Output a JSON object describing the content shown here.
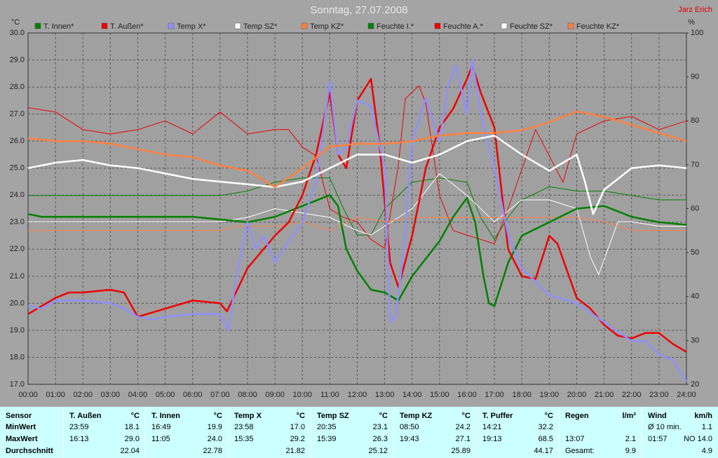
{
  "chart_data": {
    "type": "line",
    "title": "Sonntag, 27.07.2008",
    "annotation": "Jarz Erich",
    "y_label": "°C",
    "y2_label": "%",
    "xlim": [
      0,
      24
    ],
    "xticks": [
      {
        "value": 0,
        "label": "00:00"
      },
      {
        "value": 1,
        "label": "01:00"
      },
      {
        "value": 2,
        "label": "02:00"
      },
      {
        "value": 3,
        "label": "03:00"
      },
      {
        "value": 4,
        "label": "04:00"
      },
      {
        "value": 5,
        "label": "05:00"
      },
      {
        "value": 6,
        "label": "06:00"
      },
      {
        "value": 7,
        "label": "07:00"
      },
      {
        "value": 8,
        "label": "08:00"
      },
      {
        "value": 9,
        "label": "09:00"
      },
      {
        "value": 10,
        "label": "10:00"
      },
      {
        "value": 11,
        "label": "11:00"
      },
      {
        "value": 12,
        "label": "12:00"
      },
      {
        "value": 13,
        "label": "13:00"
      },
      {
        "value": 14,
        "label": "14:00"
      },
      {
        "value": 15,
        "label": "15:00"
      },
      {
        "value": 16,
        "label": "16:00"
      },
      {
        "value": 17,
        "label": "17:00"
      },
      {
        "value": 18,
        "label": "18:00"
      },
      {
        "value": 19,
        "label": "19:00"
      },
      {
        "value": 20,
        "label": "20:00"
      },
      {
        "value": 21,
        "label": "21:00"
      },
      {
        "value": 22,
        "label": "22:00"
      },
      {
        "value": 23,
        "label": "23:00"
      },
      {
        "value": 24,
        "label": "24:00"
      }
    ],
    "ylim": [
      17,
      30
    ],
    "yticks": [
      {
        "value": 17,
        "label": "17.0"
      },
      {
        "value": 18,
        "label": "18.0"
      },
      {
        "value": 19,
        "label": "19.0"
      },
      {
        "value": 20,
        "label": "20.0"
      },
      {
        "value": 21,
        "label": "21.0"
      },
      {
        "value": 22,
        "label": "22.0"
      },
      {
        "value": 23,
        "label": "23.0"
      },
      {
        "value": 24,
        "label": "24.0"
      },
      {
        "value": 25,
        "label": "25.0"
      },
      {
        "value": 26,
        "label": "26.0"
      },
      {
        "value": 27,
        "label": "27.0"
      },
      {
        "value": 28,
        "label": "28.0"
      },
      {
        "value": 29,
        "label": "29.0"
      },
      {
        "value": 30,
        "label": "30.0"
      }
    ],
    "y2lim": [
      20,
      100
    ],
    "y2ticks": [
      20,
      30,
      40,
      50,
      60,
      70,
      80,
      90,
      100
    ],
    "grid": true,
    "series": [
      {
        "name": "T. Innen*",
        "color": "#008000",
        "x": [
          0,
          0.5,
          1,
          2,
          3,
          4,
          5,
          6,
          7,
          8,
          9,
          10,
          10.5,
          11,
          11.3,
          11.6,
          12,
          12.5,
          13,
          13.5,
          14,
          15,
          15.5,
          16,
          16.3,
          16.6,
          16.8,
          17,
          17.5,
          18,
          19,
          20,
          21,
          22,
          23,
          24
        ],
        "values": [
          23.3,
          23.2,
          23.2,
          23.2,
          23.2,
          23.2,
          23.2,
          23.2,
          23.1,
          23.0,
          23.2,
          23.6,
          23.8,
          24.0,
          23.6,
          22.0,
          21.2,
          20.5,
          20.4,
          20.1,
          21.0,
          22.3,
          23.2,
          23.9,
          23.0,
          21.0,
          20.0,
          19.9,
          21.5,
          22.5,
          23.0,
          23.5,
          23.6,
          23.2,
          23.0,
          22.9
        ]
      },
      {
        "name": "T. Außen*",
        "color": "#ee0000",
        "x": [
          0,
          1,
          1.5,
          2,
          3,
          3.5,
          4,
          5,
          6,
          7,
          7.25,
          8,
          9,
          9.5,
          10,
          10.5,
          11,
          11.3,
          11.6,
          12,
          12.5,
          12.8,
          13.2,
          13.5,
          14,
          14.5,
          15,
          15.5,
          16,
          16.2,
          16.5,
          17,
          17.5,
          18,
          18.5,
          19,
          19.3,
          20,
          20.5,
          21,
          21.5,
          22,
          22.5,
          23,
          23.5,
          24
        ],
        "values": [
          19.6,
          20.2,
          20.4,
          20.4,
          20.5,
          20.4,
          19.5,
          19.8,
          20.1,
          20.0,
          19.7,
          21.3,
          22.5,
          23.0,
          24.0,
          25.5,
          27.8,
          25.5,
          25.0,
          27.5,
          28.3,
          26.0,
          21.5,
          20.6,
          22.5,
          25.0,
          26.5,
          27.2,
          28.3,
          28.8,
          27.8,
          26.5,
          22.0,
          21.0,
          20.9,
          22.5,
          22.2,
          20.2,
          19.8,
          19.2,
          18.8,
          18.7,
          18.9,
          18.9,
          18.5,
          18.2
        ]
      },
      {
        "name": "Temp X*",
        "color": "#9090ff",
        "x": [
          0,
          0.5,
          1,
          2,
          3,
          3.5,
          4,
          4.5,
          5,
          6,
          7,
          7.3,
          7.6,
          8,
          8.3,
          8.6,
          9,
          9.5,
          10,
          10.5,
          11,
          11.3,
          11.6,
          12,
          12.5,
          13,
          13.2,
          13.4,
          13.7,
          14,
          14.5,
          15,
          15.3,
          15.6,
          16,
          16.2,
          16.5,
          17,
          17.5,
          18,
          18.5,
          19,
          20,
          21,
          22,
          22.5,
          23,
          23.5,
          24
        ],
        "values": [
          19.9,
          19.8,
          20.1,
          20.1,
          20.0,
          19.8,
          19.5,
          19.4,
          19.5,
          19.6,
          19.6,
          19.0,
          21.0,
          23.0,
          22.0,
          22.5,
          21.5,
          22.3,
          23.0,
          24.5,
          28.2,
          25.5,
          25.8,
          27.5,
          27.3,
          25.0,
          19.3,
          19.5,
          22.0,
          26.0,
          27.6,
          26.0,
          28.0,
          28.8,
          27.0,
          29.0,
          27.0,
          25.0,
          22.5,
          21.3,
          20.8,
          20.3,
          20.0,
          19.3,
          18.6,
          18.6,
          18.1,
          17.9,
          17.1
        ]
      },
      {
        "name": "Temp SZ*",
        "color": "#ffffff",
        "x": [
          0,
          1,
          2,
          3,
          4,
          5,
          6,
          7,
          8,
          9,
          10,
          11,
          12,
          13,
          14,
          15,
          16,
          17,
          18,
          19,
          20,
          20.3,
          20.6,
          21,
          22,
          23,
          24
        ],
        "values": [
          25.0,
          25.2,
          25.3,
          25.1,
          25.0,
          24.8,
          24.6,
          24.5,
          24.4,
          24.3,
          24.5,
          25.0,
          25.5,
          25.5,
          25.2,
          25.5,
          26.0,
          26.2,
          25.5,
          24.9,
          25.5,
          24.5,
          23.3,
          24.2,
          25.0,
          25.1,
          25.0
        ]
      },
      {
        "name": "Temp KZ*",
        "color": "#ff8040",
        "x": [
          0,
          1,
          2,
          3,
          4,
          5,
          6,
          7,
          8,
          9,
          10,
          11,
          12,
          13,
          14,
          15,
          16,
          17,
          18,
          19,
          20,
          21,
          22,
          23,
          24
        ],
        "values": [
          26.1,
          26.0,
          26.0,
          25.9,
          25.7,
          25.5,
          25.4,
          25.1,
          24.9,
          24.3,
          25.0,
          25.8,
          25.9,
          25.9,
          26.0,
          26.2,
          26.3,
          26.3,
          26.4,
          26.7,
          27.1,
          26.9,
          26.6,
          26.3,
          26.0
        ]
      },
      {
        "name": "Feuchte I.*",
        "color": "#008000",
        "axis": "y2",
        "x": [
          0,
          1,
          2,
          3,
          4,
          5,
          6,
          7,
          8,
          9,
          10,
          11,
          11.5,
          12,
          12.5,
          13,
          14,
          15,
          16,
          16.5,
          17,
          17.5,
          18,
          19,
          20,
          21,
          22,
          23,
          24
        ],
        "values": [
          63,
          63,
          63,
          63,
          63,
          63,
          63,
          63,
          64,
          66,
          67,
          67,
          60,
          54,
          54,
          60,
          66,
          67,
          66,
          58,
          53,
          58,
          62,
          65,
          64,
          64,
          63,
          62,
          62
        ]
      },
      {
        "name": "Feuchte A.*",
        "color": "#ee0000",
        "axis": "y2",
        "x": [
          0,
          1,
          2,
          3,
          4,
          5,
          6,
          7,
          8,
          9,
          9.5,
          10,
          10.5,
          11,
          11.5,
          12,
          12.5,
          13,
          13.5,
          13.75,
          14.25,
          14.5,
          15,
          15.5,
          16,
          16.5,
          17,
          17.5,
          18,
          18.5,
          19,
          19.5,
          20,
          21,
          22,
          23,
          24
        ],
        "values": [
          83,
          82,
          78,
          77,
          78,
          80,
          77,
          82,
          77,
          78,
          78,
          74,
          72,
          60,
          58,
          57,
          53,
          51,
          70,
          85,
          88,
          84,
          63,
          55,
          54,
          53,
          52,
          60,
          69,
          78,
          72,
          66,
          77,
          80,
          81,
          78,
          80
        ]
      },
      {
        "name": "Feuchte SZ*",
        "color": "#ffffff",
        "axis": "y2",
        "x": [
          0,
          2,
          4,
          6,
          7,
          8,
          9,
          10,
          11,
          12,
          12.5,
          13,
          14,
          15,
          16,
          17,
          18,
          19,
          20,
          20.5,
          20.8,
          21.5,
          22,
          23,
          24
        ],
        "values": [
          57,
          57,
          57,
          57,
          57,
          58,
          60,
          59,
          58,
          55,
          54,
          56,
          60,
          68,
          63,
          57,
          62,
          62,
          60,
          49,
          45,
          57,
          57,
          56,
          56
        ]
      },
      {
        "name": "Feuchte KZ*",
        "color": "#ff8040",
        "axis": "y2",
        "x": [
          0,
          2,
          4,
          6,
          7,
          7.5,
          9,
          10,
          11,
          12,
          13,
          14,
          16,
          18,
          19,
          20,
          21,
          22,
          23,
          24
        ],
        "values": [
          55,
          55,
          55,
          55,
          55,
          56,
          56,
          57,
          55,
          58,
          57,
          58,
          58,
          58,
          58,
          58,
          57,
          55,
          55,
          55
        ]
      }
    ]
  },
  "table": {
    "header": [
      "Sensor",
      "T. Außen",
      "°C",
      "T. Innen",
      "°C",
      "Temp X",
      "°C",
      "Temp SZ",
      "°C",
      "Temp KZ",
      "°C",
      "T. Puffer",
      "°C",
      "Regen",
      "l/m²",
      "Wind",
      "km/h"
    ],
    "rows": [
      [
        "MinWert",
        "23:59",
        "18.1",
        "16:49",
        "19.9",
        "23:58",
        "17.0",
        "20:35",
        "23.1",
        "08:50",
        "24.2",
        "14:21",
        "32.2",
        null,
        null,
        "Ø 10 min.",
        "1.1"
      ],
      [
        "MaxWert",
        "16:13",
        "29.0",
        "11:05",
        "24.0",
        "15:35",
        "29.2",
        "15:39",
        "26.3",
        "19:43",
        "27.1",
        "19:13",
        "68.5",
        "13:07",
        "2.1",
        "01:57",
        "NO 14.0"
      ],
      [
        "Durchschnitt",
        null,
        "22.04",
        null,
        "22.78",
        null,
        "21.82",
        null,
        "25.12",
        null,
        "25.89",
        null,
        "44.17",
        "Gesamt:",
        "9.9",
        null,
        "4.9"
      ]
    ]
  }
}
